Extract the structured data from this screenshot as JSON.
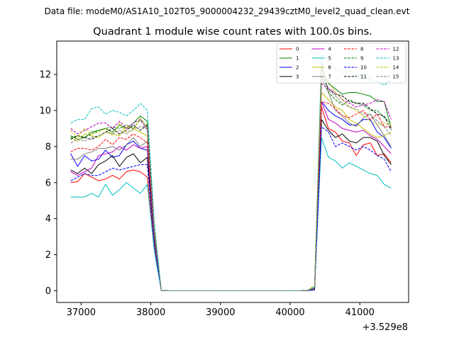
{
  "chart_data": {
    "type": "line",
    "suptitle": "Data file: modeM0/AS1A10_102T05_9000004232_29439cztM0_level2_quad_clean.evt",
    "title": "Quadrant 1 module wise count rates with 100.0s bins.",
    "xlabel": "",
    "ylabel": "",
    "x_offset_label": "+3.529e8",
    "xlim": [
      36650,
      41700
    ],
    "ylim": [
      -0.65,
      13.85
    ],
    "x_ticks": [
      37000,
      38000,
      39000,
      40000,
      41000
    ],
    "x_tick_labels": [
      "37000",
      "38000",
      "39000",
      "40000",
      "41000"
    ],
    "y_ticks": [
      0,
      2,
      4,
      6,
      8,
      10,
      12
    ],
    "y_tick_labels": [
      "0",
      "2",
      "4",
      "6",
      "8",
      "10",
      "12"
    ],
    "grid": false,
    "legend_position": "upper right",
    "legend_columns": 4,
    "x": [
      36850,
      36950,
      37050,
      37150,
      37250,
      37350,
      37450,
      37550,
      37650,
      37750,
      37850,
      37950,
      38050,
      38150,
      38250,
      38350,
      38450,
      38550,
      38650,
      38750,
      38850,
      38950,
      39050,
      39150,
      39250,
      39350,
      39450,
      39550,
      39650,
      39750,
      39850,
      39950,
      40050,
      40150,
      40250,
      40350,
      40450,
      40550,
      40650,
      40750,
      40850,
      40950,
      41050,
      41150,
      41250,
      41350,
      41450
    ],
    "series": [
      {
        "name": "0",
        "color": "#ff0000",
        "dash": false,
        "values": [
          6.0,
          6.05,
          6.5,
          6.3,
          6.1,
          6.2,
          6.4,
          6.2,
          6.6,
          6.7,
          6.6,
          6.3,
          2.5,
          0.02,
          0,
          0,
          0,
          0,
          0,
          0,
          0,
          0,
          0,
          0,
          0,
          0,
          0,
          0,
          0,
          0,
          0,
          0,
          0,
          0,
          0.01,
          0.05,
          10.2,
          9.0,
          8.8,
          8.3,
          8.2,
          7.5,
          8.1,
          8.2,
          7.5,
          7.6,
          7.1
        ]
      },
      {
        "name": "1",
        "color": "#008000",
        "dash": false,
        "values": [
          8.6,
          8.4,
          8.5,
          8.8,
          8.9,
          9.0,
          8.8,
          9.2,
          9.0,
          9.3,
          9.7,
          9.4,
          3.5,
          0.02,
          0,
          0,
          0,
          0,
          0,
          0,
          0,
          0,
          0,
          0,
          0,
          0,
          0,
          0,
          0,
          0,
          0,
          0,
          0,
          0,
          0.02,
          0.1,
          12.3,
          11.5,
          11.2,
          10.9,
          11.0,
          11.0,
          10.9,
          10.8,
          10.5,
          10.5,
          9.0
        ]
      },
      {
        "name": "2",
        "color": "#0000ff",
        "dash": false,
        "values": [
          7.6,
          6.9,
          7.5,
          7.2,
          7.3,
          7.8,
          7.4,
          7.5,
          8.1,
          8.3,
          7.9,
          7.8,
          3.0,
          0.02,
          0,
          0,
          0,
          0,
          0,
          0,
          0,
          0,
          0,
          0,
          0,
          0,
          0,
          0,
          0,
          0,
          0,
          0,
          0,
          0,
          0.01,
          0.05,
          10.5,
          10.0,
          9.7,
          9.5,
          9.2,
          9.2,
          9.5,
          9.5,
          8.8,
          8.5,
          7.9
        ]
      },
      {
        "name": "3",
        "color": "#000000",
        "dash": false,
        "values": [
          6.7,
          6.5,
          6.8,
          6.5,
          7.0,
          7.2,
          7.5,
          6.9,
          7.4,
          7.6,
          7.1,
          7.4,
          2.8,
          0.02,
          0,
          0,
          0,
          0,
          0,
          0,
          0,
          0,
          0,
          0,
          0,
          0,
          0,
          0,
          0,
          0,
          0,
          0,
          0,
          0,
          0.02,
          0.05,
          9.5,
          8.9,
          8.5,
          8.7,
          8.3,
          8.2,
          8.5,
          8.5,
          8.3,
          7.5,
          7.0
        ]
      },
      {
        "name": "4",
        "color": "#c000c0",
        "dash": false,
        "values": [
          6.6,
          6.4,
          6.6,
          6.8,
          7.5,
          7.6,
          7.7,
          8.0,
          7.8,
          8.1,
          7.9,
          8.0,
          3.0,
          0.02,
          0,
          0,
          0,
          0,
          0,
          0,
          0,
          0,
          0,
          0,
          0,
          0,
          0,
          0,
          0,
          0,
          0,
          0,
          0,
          0,
          0.02,
          0.1,
          10.5,
          9.5,
          9.3,
          9.0,
          8.9,
          8.8,
          8.9,
          8.6,
          8.4,
          8.0,
          7.6
        ]
      },
      {
        "name": "5",
        "color": "#00bfbf",
        "dash": false,
        "values": [
          5.2,
          5.2,
          5.2,
          5.4,
          5.2,
          5.9,
          5.3,
          5.6,
          6.0,
          5.7,
          5.4,
          5.9,
          2.2,
          0.02,
          0,
          0,
          0,
          0,
          0,
          0,
          0,
          0,
          0,
          0,
          0,
          0,
          0,
          0,
          0,
          0,
          0,
          0,
          0,
          0,
          0.01,
          0.04,
          8.5,
          7.4,
          7.2,
          6.8,
          7.1,
          6.9,
          6.7,
          6.5,
          6.4,
          5.9,
          5.7
        ]
      },
      {
        "name": "6",
        "color": "#bfbf00",
        "dash": false,
        "values": [
          8.5,
          8.3,
          8.7,
          8.6,
          8.5,
          8.8,
          8.7,
          8.6,
          9.1,
          9.0,
          8.8,
          8.6,
          3.3,
          0.02,
          0,
          0,
          0,
          0,
          0,
          0,
          0,
          0,
          0,
          0,
          0,
          0,
          0,
          0,
          0,
          0,
          0,
          0,
          0,
          0,
          0.02,
          0.2,
          11.0,
          10.6,
          10.2,
          10.0,
          9.5,
          9.3,
          9.0,
          8.7,
          8.5,
          8.6,
          8.8
        ]
      },
      {
        "name": "7",
        "color": "#808080",
        "dash": false,
        "values": [
          7.3,
          7.3,
          7.6,
          7.7,
          7.9,
          7.9,
          8.0,
          7.8,
          8.1,
          8.5,
          8.0,
          8.3,
          3.0,
          0.02,
          0,
          0,
          0,
          0,
          0,
          0,
          0,
          0,
          0,
          0,
          0,
          0,
          0,
          0,
          0,
          0,
          0,
          0,
          0,
          0,
          0.02,
          0.1,
          12.7,
          11.0,
          10.0,
          9.7,
          9.3,
          9.1,
          9.6,
          9.8,
          9.2,
          8.6,
          8.0
        ]
      },
      {
        "name": "8",
        "color": "#ff0000",
        "dash": true,
        "values": [
          7.7,
          7.9,
          7.9,
          7.8,
          8.0,
          8.4,
          8.1,
          8.5,
          8.4,
          8.7,
          8.5,
          8.2,
          3.2,
          0.02,
          0,
          0,
          0,
          0,
          0,
          0,
          0,
          0,
          0,
          0,
          0,
          0,
          0,
          0,
          0,
          0,
          0,
          0,
          0,
          0,
          0.02,
          0.1,
          10.5,
          10.4,
          10.1,
          9.7,
          9.6,
          9.8,
          10.0,
          9.5,
          9.8,
          9.1,
          9.1
        ]
      },
      {
        "name": "9",
        "color": "#008000",
        "dash": true,
        "values": [
          8.5,
          8.6,
          8.5,
          8.7,
          8.9,
          9.0,
          9.1,
          9.0,
          9.2,
          9.0,
          9.5,
          9.1,
          3.4,
          0.02,
          0,
          0,
          0,
          0,
          0,
          0,
          0,
          0,
          0,
          0,
          0,
          0,
          0,
          0,
          0,
          0,
          0,
          0,
          0,
          0,
          0.02,
          0.2,
          11.8,
          11.0,
          10.6,
          10.3,
          10.6,
          10.4,
          10.3,
          10.0,
          10.0,
          9.6,
          9.3
        ]
      },
      {
        "name": "10",
        "color": "#0000ff",
        "dash": true,
        "values": [
          6.1,
          6.3,
          6.5,
          6.4,
          6.4,
          6.6,
          6.8,
          6.7,
          6.8,
          6.9,
          7.0,
          7.0,
          2.6,
          0.02,
          0,
          0,
          0,
          0,
          0,
          0,
          0,
          0,
          0,
          0,
          0,
          0,
          0,
          0,
          0,
          0,
          0,
          0,
          0,
          0,
          0.01,
          0.04,
          9.1,
          8.8,
          8.0,
          8.2,
          8.0,
          7.8,
          8.0,
          7.8,
          7.5,
          7.3,
          6.6
        ]
      },
      {
        "name": "11",
        "color": "#000000",
        "dash": true,
        "values": [
          8.4,
          8.6,
          8.5,
          8.4,
          8.6,
          8.8,
          9.0,
          8.7,
          8.9,
          9.2,
          8.9,
          9.2,
          3.4,
          0.02,
          0,
          0,
          0,
          0,
          0,
          0,
          0,
          0,
          0,
          0,
          0,
          0,
          0,
          0,
          0,
          0,
          0,
          0,
          0,
          0,
          0.02,
          0.15,
          12.0,
          11.2,
          10.9,
          10.8,
          10.5,
          10.4,
          10.4,
          10.1,
          9.8,
          9.7,
          8.9
        ]
      },
      {
        "name": "12",
        "color": "#c000c0",
        "dash": true,
        "values": [
          9.0,
          8.7,
          8.9,
          9.1,
          9.3,
          9.3,
          9.0,
          9.4,
          9.0,
          9.3,
          9.5,
          8.9,
          3.4,
          0.02,
          0,
          0,
          0,
          0,
          0,
          0,
          0,
          0,
          0,
          0,
          0,
          0,
          0,
          0,
          0,
          0,
          0,
          0,
          0,
          0,
          0.02,
          0.2,
          11.5,
          11.2,
          11.0,
          10.6,
          10.4,
          10.2,
          10.3,
          10.4,
          10.6,
          10.5,
          9.5
        ]
      },
      {
        "name": "13",
        "color": "#00bfbf",
        "dash": true,
        "values": [
          9.3,
          9.5,
          9.5,
          10.1,
          10.2,
          9.8,
          10.0,
          9.9,
          9.7,
          10.0,
          10.4,
          10.0,
          3.8,
          0.02,
          0,
          0,
          0,
          0,
          0,
          0,
          0,
          0,
          0,
          0,
          0,
          0,
          0,
          0,
          0,
          0,
          0,
          0,
          0,
          0,
          0.02,
          0.2,
          13.1,
          12.9,
          12.3,
          12.1,
          12.2,
          11.9,
          12.0,
          11.7,
          11.6,
          11.4,
          11.7
        ]
      },
      {
        "name": "14",
        "color": "#bfbf00",
        "dash": true,
        "values": [
          8.9,
          8.5,
          9.0,
          8.7,
          8.8,
          9.0,
          8.6,
          9.3,
          8.8,
          8.9,
          9.6,
          9.0,
          3.4,
          0.02,
          0,
          0,
          0,
          0,
          0,
          0,
          0,
          0,
          0,
          0,
          0,
          0,
          0,
          0,
          0,
          0,
          0,
          0,
          0,
          0,
          0.02,
          0.3,
          12.2,
          11.6,
          11.0,
          10.6,
          10.2,
          10.0,
          9.7,
          9.4,
          9.2,
          9.3,
          9.2
        ]
      },
      {
        "name": "15",
        "color": "#808080",
        "dash": true,
        "values": [
          8.2,
          8.4,
          8.3,
          8.5,
          8.6,
          8.8,
          8.7,
          8.9,
          8.7,
          9.0,
          9.1,
          9.1,
          3.3,
          0.02,
          0,
          0,
          0,
          0,
          0,
          0,
          0,
          0,
          0,
          0,
          0,
          0,
          0,
          0,
          0,
          0,
          0,
          0,
          0,
          0,
          0.02,
          0.15,
          11.7,
          11.1,
          10.8,
          10.4,
          10.2,
          10.1,
          9.8,
          9.8,
          9.4,
          9.1,
          8.6
        ]
      }
    ]
  }
}
